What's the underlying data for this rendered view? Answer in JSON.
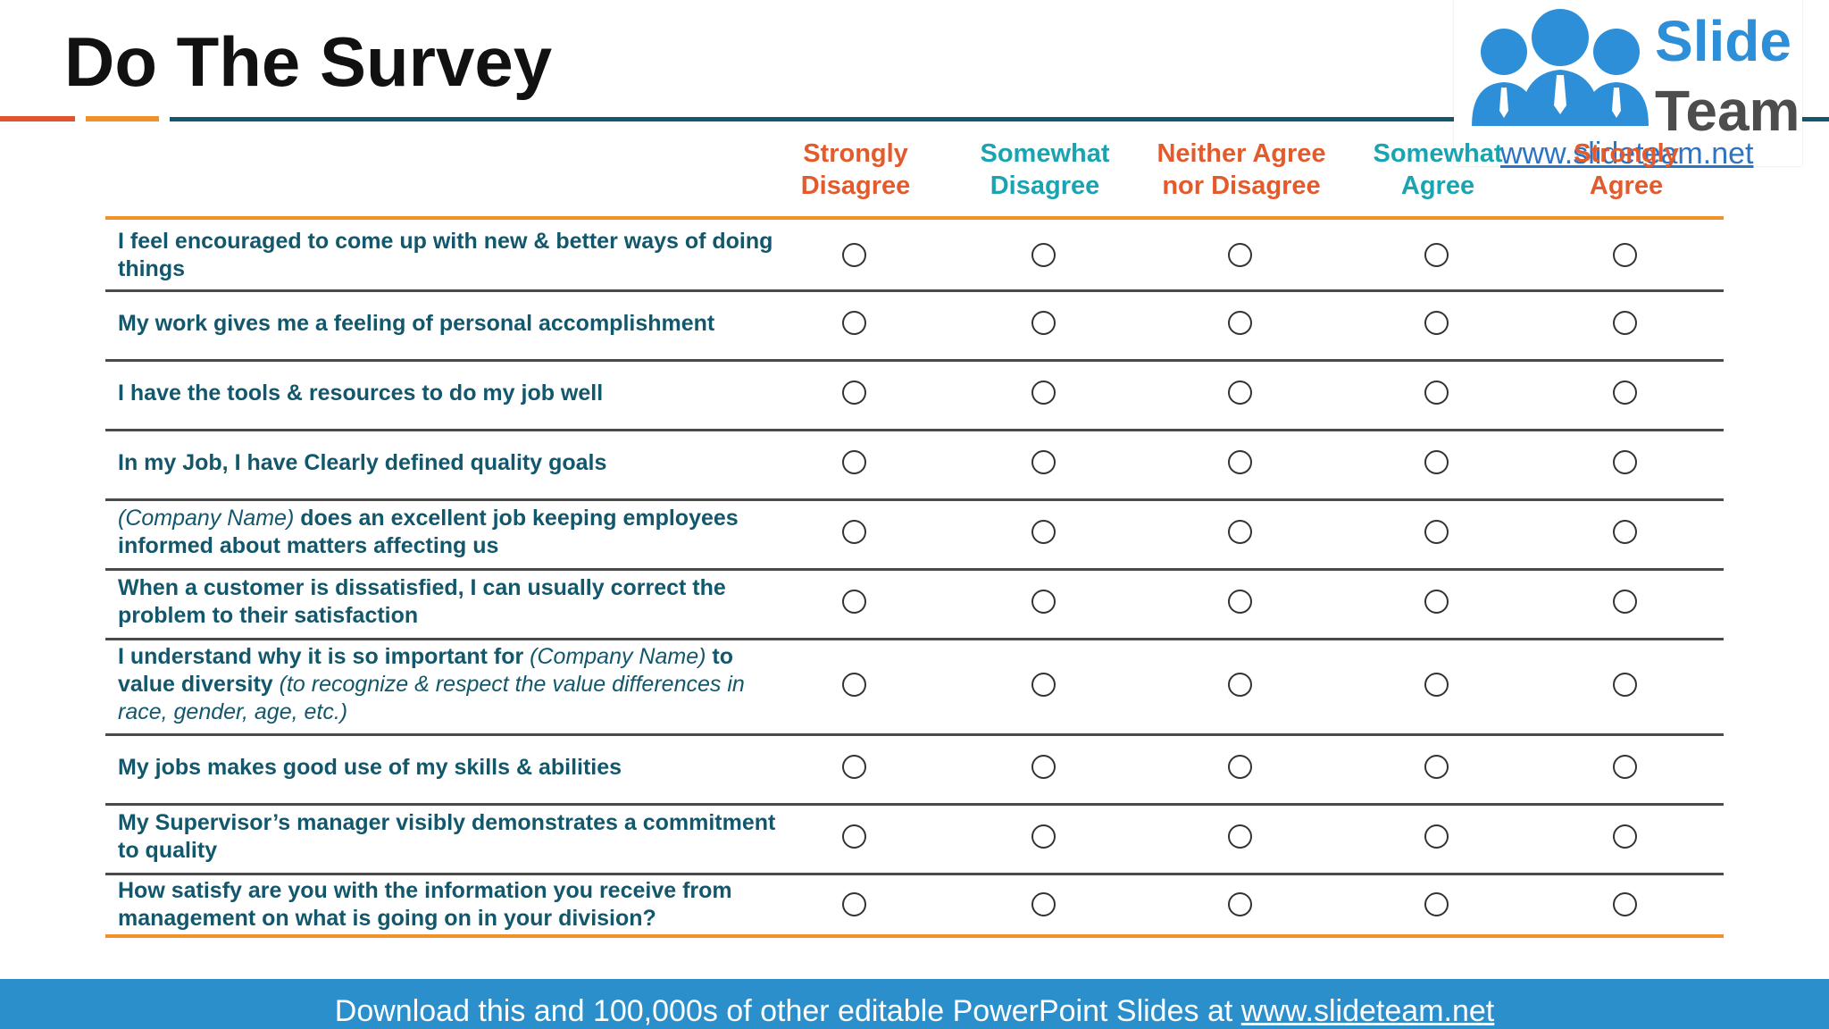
{
  "slide": {
    "title": "Do The Survey"
  },
  "logo": {
    "line1": "Slide",
    "line2": "Team",
    "url": "www.slideteam.net",
    "brand_blue": "#2d8fd8"
  },
  "columns": [
    {
      "line1": "Strongly",
      "line2": "Disagree",
      "color": "orange"
    },
    {
      "line1": "Somewhat",
      "line2": "Disagree",
      "color": "teal"
    },
    {
      "line1": "Neither Agree",
      "line2": "nor Disagree",
      "color": "orange"
    },
    {
      "line1": "Somewhat",
      "line2": "Agree",
      "color": "teal"
    },
    {
      "line1": "Strongly",
      "line2": "Agree",
      "color": "orange"
    }
  ],
  "questions": [
    {
      "parts": [
        {
          "t": "I feel encouraged to come up with new & better ways of doing things",
          "i": false
        }
      ]
    },
    {
      "parts": [
        {
          "t": "My work gives me a feeling of personal accomplishment",
          "i": false
        }
      ]
    },
    {
      "parts": [
        {
          "t": "I have the tools & resources to do my job well",
          "i": false
        }
      ]
    },
    {
      "parts": [
        {
          "t": "In my Job, I have Clearly defined quality goals",
          "i": false
        }
      ]
    },
    {
      "parts": [
        {
          "t": "(Company Name)",
          "i": true
        },
        {
          "t": " does an excellent job keeping employees informed about matters affecting us",
          "i": false
        }
      ]
    },
    {
      "parts": [
        {
          "t": "When a customer is dissatisfied, I can usually correct the problem to their satisfaction",
          "i": false
        }
      ]
    },
    {
      "parts": [
        {
          "t": "I understand why it is so important for ",
          "i": false
        },
        {
          "t": "(Company Name)",
          "i": true
        },
        {
          "t": " to value diversity ",
          "i": false
        },
        {
          "t": "(to recognize & respect the value differences in race, gender, age, etc.)",
          "i": true
        }
      ]
    },
    {
      "parts": [
        {
          "t": "My jobs makes good use of my skills & abilities",
          "i": false
        }
      ]
    },
    {
      "parts": [
        {
          "t": "My Supervisor’s manager visibly demonstrates a commitment to quality",
          "i": false
        }
      ]
    },
    {
      "parts": [
        {
          "t": "How satisfy are you with the information you receive from management on what is going on in your division?",
          "i": false
        }
      ]
    }
  ],
  "footer": {
    "text": "Download this and 100,000s of other editable PowerPoint Slides at ",
    "link": "www.slideteam.net"
  },
  "colors": {
    "orange_heading": "#e35a2c",
    "teal_heading": "#1aa3b0",
    "question_text": "#12576b",
    "footer_bg": "#2b8fcb"
  }
}
